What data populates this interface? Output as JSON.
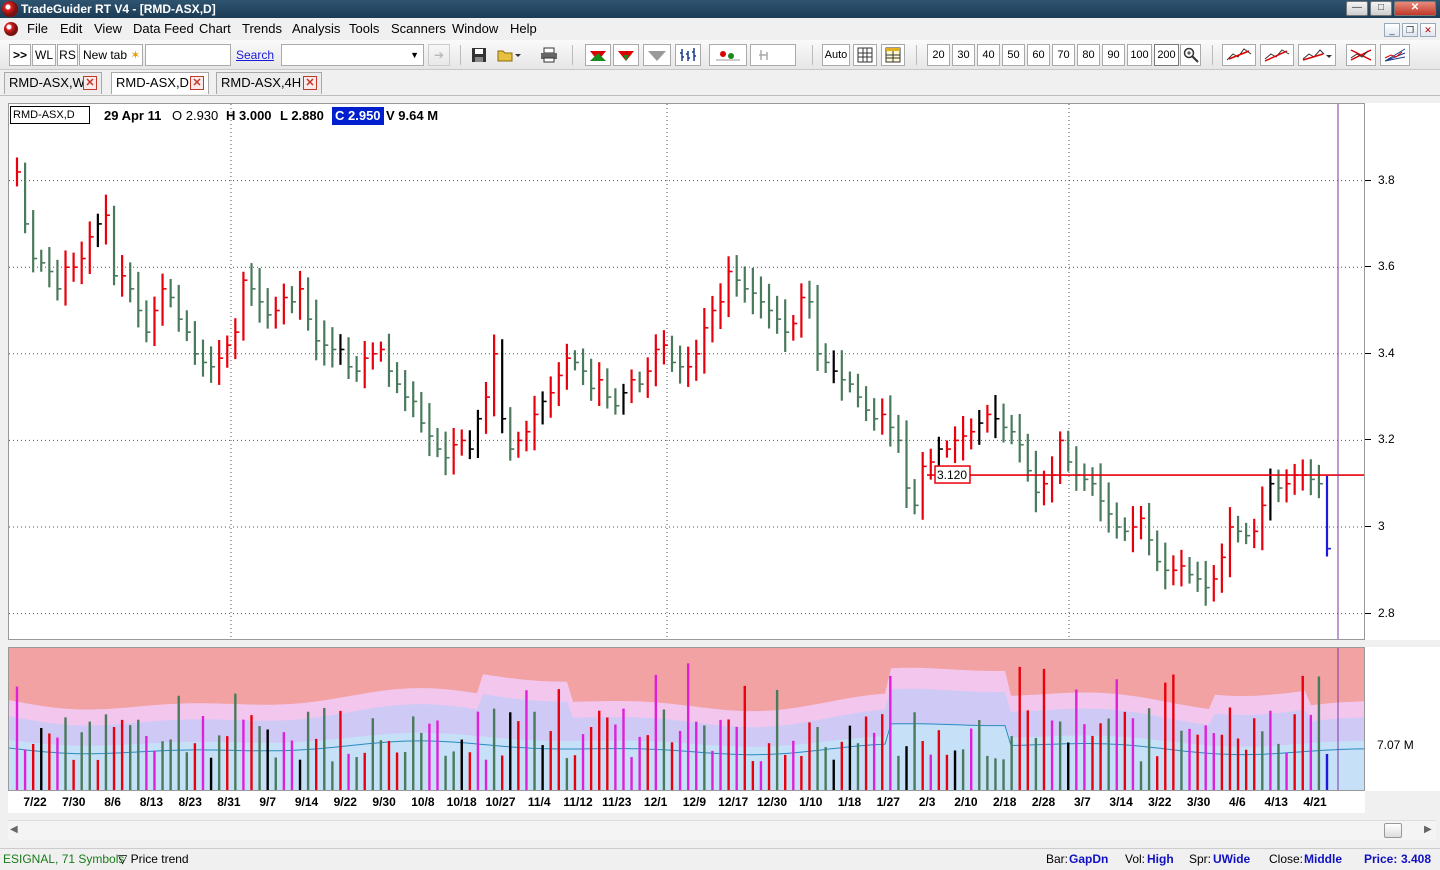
{
  "window": {
    "title": "TradeGuider RT V4  - [RMD-ASX,D]",
    "min_glyph": "—",
    "max_glyph": "□",
    "close_glyph": "✕"
  },
  "menu": [
    "File",
    "Edit",
    "View",
    "Data Feed",
    "Chart",
    "Trends",
    "Analysis",
    "Tools",
    "Scanners",
    "Window",
    "Help"
  ],
  "toolbar": {
    "forward_label": ">>",
    "wl_label": "WL",
    "rs_label": "RS",
    "new_tab_label": "New tab",
    "search_link": "Search",
    "auto_label": "Auto",
    "bar_counts": [
      "20",
      "30",
      "40",
      "50",
      "60",
      "70",
      "80",
      "90",
      "100",
      "200"
    ],
    "selected_bar_count": "200"
  },
  "tabs": [
    {
      "label": "RMD-ASX,W",
      "active": false
    },
    {
      "label": "RMD-ASX,D",
      "active": true
    },
    {
      "label": "RMD-ASX,4H",
      "active": false
    }
  ],
  "info": {
    "symbol": "RMD-ASX,D",
    "date": "29 Apr 11",
    "open": "O 2.930",
    "high": "H 3.000",
    "low": "L 2.880",
    "close": "C 2.950",
    "volume": "V 9.64 M"
  },
  "price_axis": {
    "ticks": [
      "3.8",
      "3.6",
      "3.4",
      "3.2",
      "3",
      "2.8"
    ],
    "tick_values": [
      3.8,
      3.6,
      3.4,
      3.2,
      3.0,
      2.8
    ]
  },
  "volume_axis": {
    "label": "7.07 M"
  },
  "support_line": {
    "value": 3.12,
    "label": "3.120",
    "color": "#e8000c"
  },
  "dates": [
    "7/22",
    "7/30",
    "8/6",
    "8/13",
    "8/23",
    "8/31",
    "9/7",
    "9/14",
    "9/22",
    "9/30",
    "10/8",
    "10/18",
    "10/27",
    "11/4",
    "11/12",
    "11/23",
    "12/1",
    "12/9",
    "12/17",
    "12/30",
    "1/10",
    "1/18",
    "1/27",
    "2/3",
    "2/10",
    "2/18",
    "2/28",
    "3/7",
    "3/14",
    "3/22",
    "3/30",
    "4/6",
    "4/13",
    "4/21"
  ],
  "colors": {
    "up_bar": "#e8000c",
    "down_bar": "#4a7a5c",
    "neutral_bar": "#000000",
    "last_bar": "#1a1ad8",
    "volume_band_outer": "#f2a2a2",
    "volume_band_mid": "#f3c6ee",
    "volume_band_inner": "#cfcaf5",
    "volume_band_core": "#c6e0f8",
    "volume_magenta": "#e020d8"
  },
  "status": {
    "feed": "ESIGNAL, 71 Symbols",
    "price_trend": "Price trend",
    "bar_label": "Bar:",
    "bar_value": "GapDn",
    "vol_label": "Vol:",
    "vol_value": "High",
    "spr_label": "Spr:",
    "spr_value": "UWide",
    "close_label": "Close:",
    "close_value": "Middle",
    "price_label": "Price:",
    "price_value": "3.408"
  },
  "chart_data": {
    "type": "ohlc",
    "symbol": "RMD-ASX",
    "timeframe": "D",
    "ylim": [
      2.75,
      3.9
    ],
    "gridlines_y": [
      3.8,
      3.6,
      3.4,
      3.2,
      3.0,
      2.8
    ],
    "x_dates": [
      "7/22",
      "7/30",
      "8/6",
      "8/13",
      "8/23",
      "8/31",
      "9/7",
      "9/14",
      "9/22",
      "9/30",
      "10/8",
      "10/18",
      "10/27",
      "11/4",
      "11/12",
      "11/23",
      "12/1",
      "12/9",
      "12/17",
      "12/30",
      "1/10",
      "1/18",
      "1/27",
      "2/3",
      "2/10",
      "2/18",
      "2/28",
      "3/7",
      "3/14",
      "3/22",
      "3/30",
      "4/6",
      "4/13",
      "4/21"
    ],
    "closes": [
      3.82,
      3.7,
      3.62,
      3.61,
      3.59,
      3.55,
      3.6,
      3.6,
      3.62,
      3.67,
      3.7,
      3.72,
      3.58,
      3.58,
      3.55,
      3.5,
      3.45,
      3.5,
      3.55,
      3.53,
      3.48,
      3.45,
      3.4,
      3.38,
      3.37,
      3.39,
      3.42,
      3.45,
      3.57,
      3.55,
      3.52,
      3.49,
      3.5,
      3.53,
      3.52,
      3.55,
      3.48,
      3.43,
      3.42,
      3.41,
      3.41,
      3.37,
      3.36,
      3.39,
      3.4,
      3.41,
      3.36,
      3.33,
      3.3,
      3.29,
      3.24,
      3.21,
      3.18,
      3.16,
      3.19,
      3.2,
      3.18,
      3.25,
      3.3,
      3.4,
      3.25,
      3.18,
      3.2,
      3.22,
      3.26,
      3.29,
      3.31,
      3.35,
      3.39,
      3.38,
      3.36,
      3.32,
      3.34,
      3.3,
      3.28,
      3.31,
      3.34,
      3.33,
      3.36,
      3.41,
      3.42,
      3.38,
      3.37,
      3.37,
      3.4,
      3.46,
      3.5,
      3.52,
      3.59,
      3.57,
      3.55,
      3.54,
      3.52,
      3.5,
      3.48,
      3.45,
      3.47,
      3.53,
      3.52,
      3.4,
      3.38,
      3.36,
      3.34,
      3.33,
      3.3,
      3.27,
      3.25,
      3.26,
      3.23,
      3.2,
      3.09,
      3.05,
      3.14,
      3.15,
      3.18,
      3.18,
      3.2,
      3.21,
      3.22,
      3.24,
      3.26,
      3.25,
      3.23,
      3.22,
      3.19,
      3.13,
      3.08,
      3.1,
      3.12,
      3.2,
      3.15,
      3.12,
      3.11,
      3.1,
      3.06,
      3.03,
      3.0,
      2.99,
      3.0,
      3.02,
      2.97,
      2.92,
      2.9,
      2.9,
      2.91,
      2.89,
      2.88,
      2.86,
      2.88,
      2.93,
      3.0,
      2.99,
      2.98,
      2.99,
      3.05,
      3.1,
      3.09,
      3.1,
      3.12,
      3.12,
      3.11,
      3.1,
      2.95
    ],
    "last_bar": {
      "date": "29 Apr 11",
      "open": 2.93,
      "high": 3.0,
      "low": 2.88,
      "close": 2.95,
      "volume": "9.64 M"
    },
    "annotations": [
      {
        "type": "hline",
        "value": 3.12,
        "label": "3.120"
      }
    ]
  }
}
